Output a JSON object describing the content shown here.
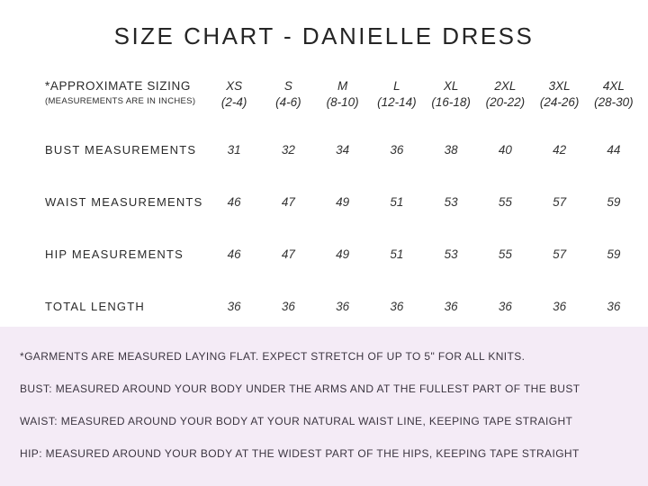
{
  "title": "SIZE CHART - DANIELLE DRESS",
  "table": {
    "corner": {
      "line1": "*APPROXIMATE SIZING",
      "line2": "(MEASUREMENTS ARE IN INCHES)"
    },
    "columns": [
      {
        "size": "XS",
        "range": "(2-4)"
      },
      {
        "size": "S",
        "range": "(4-6)"
      },
      {
        "size": "M",
        "range": "(8-10)"
      },
      {
        "size": "L",
        "range": "(12-14)"
      },
      {
        "size": "XL",
        "range": "(16-18)"
      },
      {
        "size": "2XL",
        "range": "(20-22)"
      },
      {
        "size": "3XL",
        "range": "(24-26)"
      },
      {
        "size": "4XL",
        "range": "(28-30)"
      }
    ],
    "rows": [
      {
        "label": "BUST MEASUREMENTS",
        "values": [
          "31",
          "32",
          "34",
          "36",
          "38",
          "40",
          "42",
          "44"
        ]
      },
      {
        "label": "WAIST MEASUREMENTS",
        "values": [
          "46",
          "47",
          "49",
          "51",
          "53",
          "55",
          "57",
          "59"
        ]
      },
      {
        "label": "HIP MEASUREMENTS",
        "values": [
          "46",
          "47",
          "49",
          "51",
          "53",
          "55",
          "57",
          "59"
        ]
      },
      {
        "label": "TOTAL LENGTH",
        "values": [
          "36",
          "36",
          "36",
          "36",
          "36",
          "36",
          "36",
          "36"
        ]
      }
    ]
  },
  "notes": {
    "lines": [
      "*GARMENTS ARE MEASURED LAYING FLAT. EXPECT STRETCH OF UP TO 5\" FOR ALL KNITS.",
      "BUST: MEASURED AROUND YOUR BODY UNDER THE ARMS AND AT THE FULLEST PART OF THE BUST",
      "WAIST: MEASURED AROUND YOUR BODY AT YOUR NATURAL WAIST LINE, KEEPING TAPE STRAIGHT",
      "HIP: MEASURED AROUND YOUR BODY AT THE WIDEST PART OF THE HIPS, KEEPING TAPE STRAIGHT"
    ]
  },
  "colors": {
    "notes_background": "#f4ebf6",
    "text": "#2b2b2b"
  }
}
